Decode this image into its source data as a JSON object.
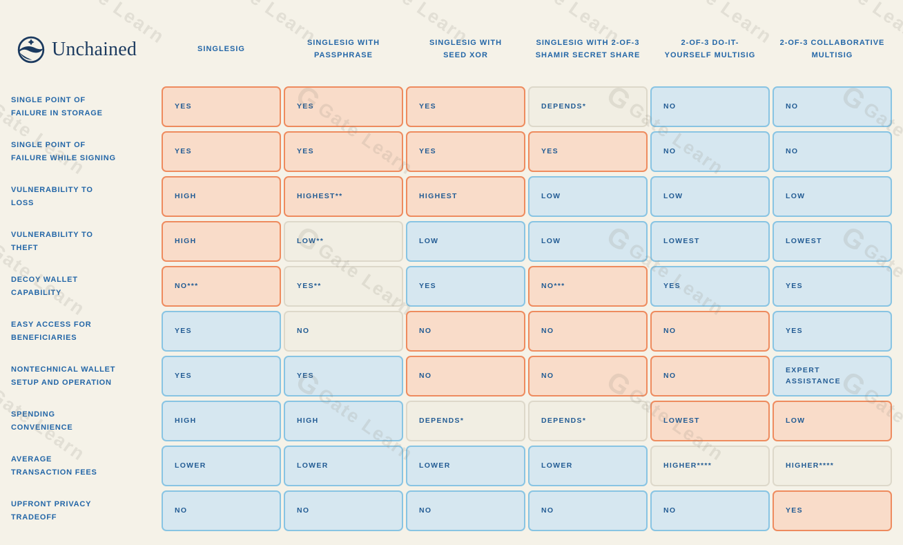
{
  "logo": {
    "brand": "Unchained"
  },
  "watermark": {
    "icon": "G",
    "text": "Gate Learn"
  },
  "colors": {
    "background": "#F5F2E8",
    "bad_fill": "#F9DCC9",
    "bad_border": "#EE8B5E",
    "good_fill": "#D6E7F0",
    "good_border": "#88C4E3",
    "neutral_fill": "#F1EEE3",
    "neutral_border": "#DDD8CA",
    "text_navy": "#235C94",
    "header_blue": "#2366A7",
    "logo_navy": "#1B3A5F"
  },
  "chart_data": {
    "type": "table",
    "title": "Unchained wallet setup comparison",
    "columns": [
      {
        "label": "SINGLESIG",
        "lines": [
          "SINGLESIG"
        ]
      },
      {
        "label": "SINGLESIG WITH PASSPHRASE",
        "lines": [
          "SINGLESIG WITH",
          "PASSPHRASE"
        ]
      },
      {
        "label": "SINGLESIG WITH SEED XOR",
        "lines": [
          "SINGLESIG WITH",
          "SEED XOR"
        ]
      },
      {
        "label": "SINGLESIG WITH 2-OF-3 SHAMIR SECRET SHARE",
        "lines": [
          "SINGLESIG WITH 2-OF-3",
          "SHAMIR SECRET SHARE"
        ]
      },
      {
        "label": "2-OF-3 DO-IT-YOURSELF MULTISIG",
        "lines": [
          "2-OF-3 DO-IT-",
          "YOURSELF MULTISIG"
        ]
      },
      {
        "label": "2-OF-3 COLLABORATIVE MULTISIG",
        "lines": [
          "2-OF-3 COLLABORATIVE",
          "MULTISIG"
        ]
      }
    ],
    "rows": [
      {
        "label": "SINGLE POINT OF FAILURE IN STORAGE",
        "label_lines": [
          "SINGLE POINT OF",
          "FAILURE IN STORAGE"
        ],
        "cells": [
          {
            "value": "YES",
            "type": "bad"
          },
          {
            "value": "YES",
            "type": "bad"
          },
          {
            "value": "YES",
            "type": "bad"
          },
          {
            "value": "DEPENDS*",
            "type": "neutral"
          },
          {
            "value": "NO",
            "type": "good"
          },
          {
            "value": "NO",
            "type": "good"
          }
        ]
      },
      {
        "label": "SINGLE POINT OF FAILURE WHILE SIGNING",
        "label_lines": [
          "SINGLE POINT OF",
          "FAILURE WHILE SIGNING"
        ],
        "cells": [
          {
            "value": "YES",
            "type": "bad"
          },
          {
            "value": "YES",
            "type": "bad"
          },
          {
            "value": "YES",
            "type": "bad"
          },
          {
            "value": "YES",
            "type": "bad"
          },
          {
            "value": "NO",
            "type": "good"
          },
          {
            "value": "NO",
            "type": "good"
          }
        ]
      },
      {
        "label": "VULNERABILITY TO LOSS",
        "label_lines": [
          "VULNERABILITY TO",
          "LOSS"
        ],
        "cells": [
          {
            "value": "HIGH",
            "type": "bad"
          },
          {
            "value": "HIGHEST**",
            "type": "bad"
          },
          {
            "value": "HIGHEST",
            "type": "bad"
          },
          {
            "value": "LOW",
            "type": "good"
          },
          {
            "value": "LOW",
            "type": "good"
          },
          {
            "value": "LOW",
            "type": "good"
          }
        ]
      },
      {
        "label": "VULNERABILITY TO THEFT",
        "label_lines": [
          "VULNERABILITY TO",
          "THEFT"
        ],
        "cells": [
          {
            "value": "HIGH",
            "type": "bad"
          },
          {
            "value": "LOW**",
            "type": "neutral"
          },
          {
            "value": "LOW",
            "type": "good"
          },
          {
            "value": "LOW",
            "type": "good"
          },
          {
            "value": "LOWEST",
            "type": "good"
          },
          {
            "value": "LOWEST",
            "type": "good"
          }
        ]
      },
      {
        "label": "DECOY WALLET CAPABILITY",
        "label_lines": [
          "DECOY WALLET",
          "CAPABILITY"
        ],
        "cells": [
          {
            "value": "NO***",
            "type": "bad"
          },
          {
            "value": "YES**",
            "type": "neutral"
          },
          {
            "value": "YES",
            "type": "good"
          },
          {
            "value": "NO***",
            "type": "bad"
          },
          {
            "value": "YES",
            "type": "good"
          },
          {
            "value": "YES",
            "type": "good"
          }
        ]
      },
      {
        "label": "EASY ACCESS FOR BENEFICIARIES",
        "label_lines": [
          "EASY ACCESS FOR",
          "BENEFICIARIES"
        ],
        "cells": [
          {
            "value": "YES",
            "type": "good"
          },
          {
            "value": "NO",
            "type": "neutral"
          },
          {
            "value": "NO",
            "type": "bad"
          },
          {
            "value": "NO",
            "type": "bad"
          },
          {
            "value": "NO",
            "type": "bad"
          },
          {
            "value": "YES",
            "type": "good"
          }
        ]
      },
      {
        "label": "NONTECHNICAL WALLET SETUP AND OPERATION",
        "label_lines": [
          "NONTECHNICAL WALLET",
          "SETUP AND OPERATION"
        ],
        "cells": [
          {
            "value": "YES",
            "type": "good"
          },
          {
            "value": "YES",
            "type": "good"
          },
          {
            "value": "NO",
            "type": "bad"
          },
          {
            "value": "NO",
            "type": "bad"
          },
          {
            "value": "NO",
            "type": "bad"
          },
          {
            "value": "EXPERT ASSISTANCE",
            "type": "good",
            "lines": [
              "EXPERT",
              "ASSISTANCE"
            ]
          }
        ]
      },
      {
        "label": "SPENDING CONVENIENCE",
        "label_lines": [
          "SPENDING",
          "CONVENIENCE"
        ],
        "cells": [
          {
            "value": "HIGH",
            "type": "good"
          },
          {
            "value": "HIGH",
            "type": "good"
          },
          {
            "value": "DEPENDS*",
            "type": "neutral"
          },
          {
            "value": "DEPENDS*",
            "type": "neutral"
          },
          {
            "value": "LOWEST",
            "type": "bad"
          },
          {
            "value": "LOW",
            "type": "bad"
          }
        ]
      },
      {
        "label": "AVERAGE TRANSACTION FEES",
        "label_lines": [
          "AVERAGE",
          "TRANSACTION FEES"
        ],
        "cells": [
          {
            "value": "LOWER",
            "type": "good"
          },
          {
            "value": "LOWER",
            "type": "good"
          },
          {
            "value": "LOWER",
            "type": "good"
          },
          {
            "value": "LOWER",
            "type": "good"
          },
          {
            "value": "HIGHER****",
            "type": "neutral"
          },
          {
            "value": "HIGHER****",
            "type": "neutral"
          }
        ]
      },
      {
        "label": "UPFRONT PRIVACY TRADEOFF",
        "label_lines": [
          "UPFRONT PRIVACY",
          "TRADEOFF"
        ],
        "cells": [
          {
            "value": "NO",
            "type": "good"
          },
          {
            "value": "NO",
            "type": "good"
          },
          {
            "value": "NO",
            "type": "good"
          },
          {
            "value": "NO",
            "type": "good"
          },
          {
            "value": "NO",
            "type": "good"
          },
          {
            "value": "YES",
            "type": "bad"
          }
        ]
      }
    ],
    "legend_semantics": {
      "bad": "orange — drawback",
      "good": "blue — benefit",
      "neutral": "beige — depends / mixed"
    }
  }
}
